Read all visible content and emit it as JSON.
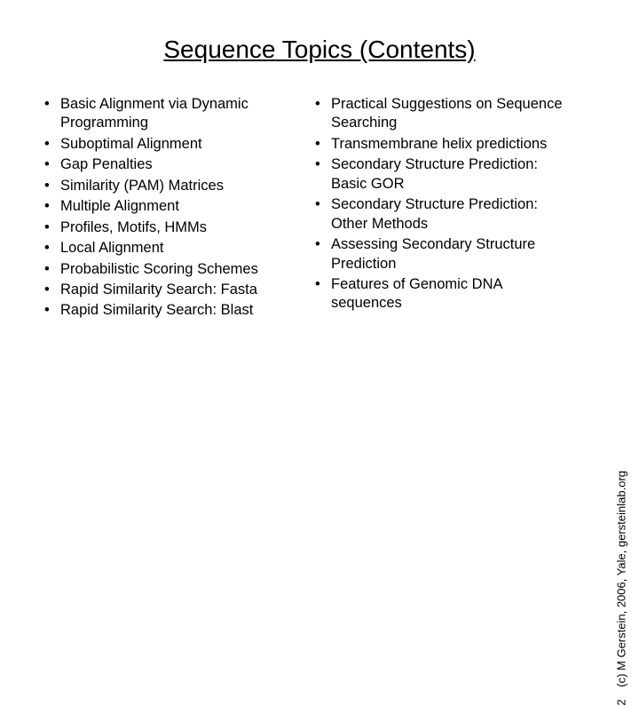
{
  "title": "Sequence Topics (Contents)",
  "columns": {
    "left": [
      "Basic Alignment via Dynamic Programming",
      "Suboptimal Alignment",
      "Gap Penalties",
      "Similarity (PAM) Matrices",
      "Multiple Alignment",
      "Profiles, Motifs, HMMs",
      "Local Alignment",
      "Probabilistic Scoring Schemes",
      "Rapid Similarity Search: Fasta",
      "Rapid Similarity Search: Blast"
    ],
    "right": [
      "Practical Suggestions on Sequence Searching",
      "Transmembrane helix predictions",
      "Secondary Structure Prediction: Basic GOR",
      "Secondary Structure Prediction: Other Methods",
      "Assessing Secondary Structure Prediction",
      "Features of Genomic DNA sequences"
    ]
  },
  "footer": {
    "page": "2",
    "credit": "(c) M Gerstein, 2006, Yale, gersteinlab.org"
  }
}
